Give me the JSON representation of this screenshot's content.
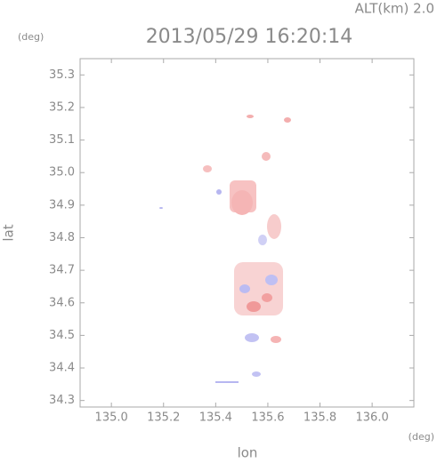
{
  "chart_data": {
    "type": "map",
    "title": "2013/05/29 16:20:14",
    "altitude_label": "ALT(km) 2.0",
    "y_unit": "(deg)",
    "x_unit": "(deg)",
    "x_label": "lon",
    "y_label": "lat",
    "xlim": [
      134.88,
      136.16
    ],
    "ylim": [
      34.28,
      35.35
    ],
    "xticks": [
      {
        "value": 135.0,
        "label": "135.0"
      },
      135.2,
      135.4,
      135.6,
      135.8,
      {
        "value": 136.0,
        "label": "136.0"
      }
    ],
    "yticks": [
      34.3,
      34.4,
      34.5,
      34.6,
      34.7,
      34.8,
      34.9,
      {
        "value": 35.0,
        "label": "35.0"
      },
      35.1,
      35.2,
      35.3
    ]
  }
}
